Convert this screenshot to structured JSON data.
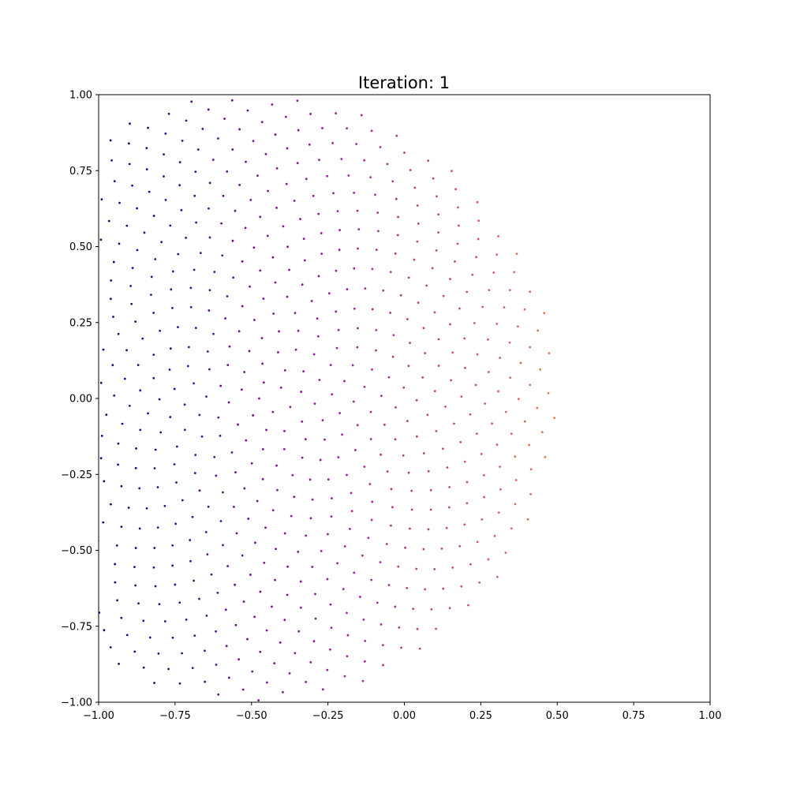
{
  "chart_data": {
    "type": "scatter",
    "title": "Iteration: 1",
    "xlabel": "",
    "ylabel": "",
    "xlim": [
      -1.0,
      1.0
    ],
    "ylim": [
      -1.0,
      1.0
    ],
    "x_ticks": [
      "−1.00",
      "−0.75",
      "−0.50",
      "−0.25",
      "0.00",
      "0.25",
      "0.50",
      "0.75",
      "1.00"
    ],
    "y_ticks": [
      "1.00",
      "0.75",
      "0.50",
      "0.25",
      "0.00",
      "−0.25",
      "−0.50",
      "−0.75",
      "−1.00"
    ],
    "x_tick_values": [
      -1.0,
      -0.75,
      -0.5,
      -0.25,
      0.0,
      0.25,
      0.5,
      0.75,
      1.0
    ],
    "y_tick_values": [
      1.0,
      0.75,
      0.5,
      0.25,
      0.0,
      -0.25,
      -0.5,
      -0.75,
      -1.0
    ],
    "grid": false,
    "pattern": "phyllotaxis spiral",
    "center": [
      -0.5,
      0.0
    ],
    "radius": 1.0,
    "point_count": 800,
    "divergence_angle_deg": 137.508,
    "colormap": "plasma",
    "color_start": "#0d0887",
    "color_mid": "#9c179e",
    "color_end": "#ed7953",
    "axis_color": "#000000"
  }
}
